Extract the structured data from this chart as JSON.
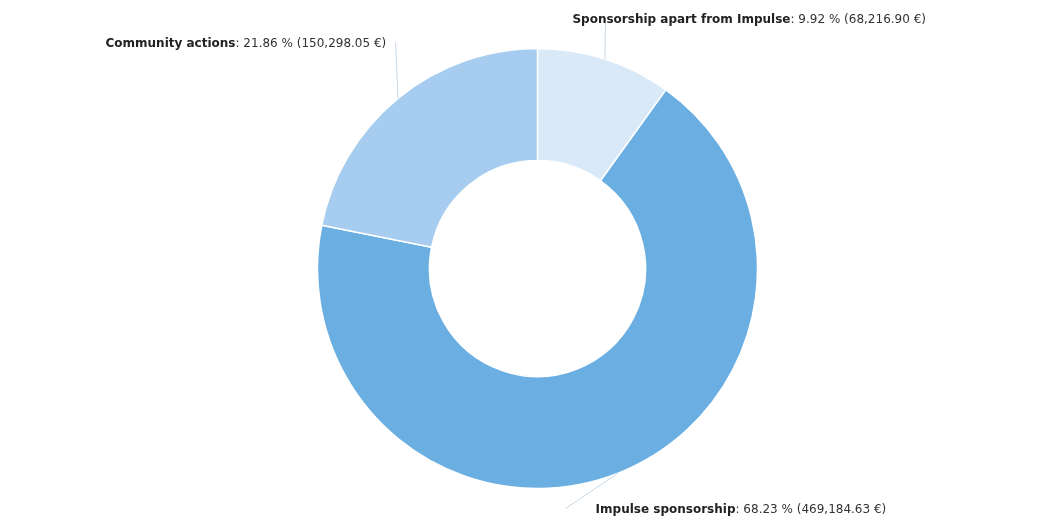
{
  "chart_data": {
    "type": "donut",
    "categories": [
      "Sponsorship apart from Impulse",
      "Impulse sponsorship",
      "Community actions"
    ],
    "values": [
      9.92,
      68.23,
      21.86
    ],
    "value_labels": [
      ": 9.92 % (68,216.90 €)",
      ": 68.23 % (469,184.63 €)",
      ": 21.86 % (150,298.05 €)"
    ],
    "colors": [
      "#d9e9f7",
      "#6aaee2",
      "#a6cdef"
    ]
  }
}
